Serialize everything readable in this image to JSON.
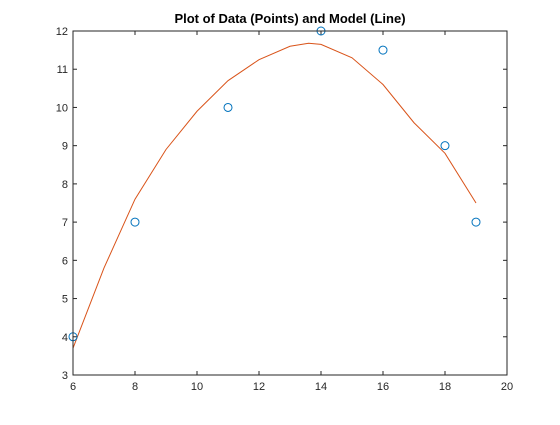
{
  "chart_data": {
    "type": "scatter",
    "title": "Plot of Data (Points) and Model (Line)",
    "xlabel": "",
    "ylabel": "",
    "xlim": [
      6,
      20
    ],
    "ylim": [
      3,
      12
    ],
    "xticks": [
      6,
      8,
      10,
      12,
      14,
      16,
      18,
      20
    ],
    "yticks": [
      3,
      4,
      5,
      6,
      7,
      8,
      9,
      10,
      11,
      12
    ],
    "grid": false,
    "legend": "none",
    "points": {
      "marker": "circle-open",
      "color": "#0072BD",
      "x": [
        6,
        8,
        11,
        14,
        16,
        18,
        19
      ],
      "y": [
        4,
        7,
        10,
        12,
        11.5,
        9,
        7
      ]
    },
    "model_line": {
      "color": "#D95319",
      "x": [
        6,
        7,
        8,
        9,
        10,
        11,
        12,
        13,
        13.6,
        14,
        15,
        16,
        17,
        18,
        19
      ],
      "y": [
        3.7,
        5.8,
        7.6,
        8.9,
        9.9,
        10.7,
        11.25,
        11.6,
        11.68,
        11.65,
        11.3,
        10.6,
        9.6,
        8.8,
        7.5
      ]
    }
  }
}
